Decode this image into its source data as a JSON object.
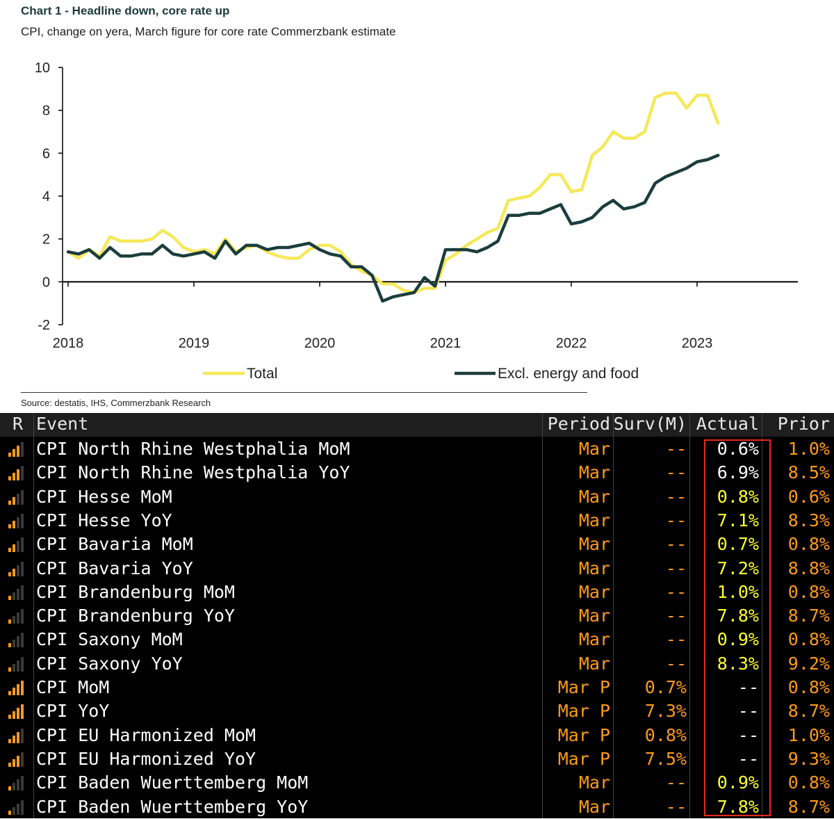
{
  "header": {
    "title": "Chart 1 - Headline down, core rate up",
    "subtitle": "CPI, change on yera, March figure for core rate Commerzbank estimate",
    "source": "Source: destatis, IHS, Commerzbank Research"
  },
  "chart_data": {
    "type": "line",
    "title": "Chart 1 - Headline down, core rate up",
    "subtitle": "CPI, change on yera, March figure for core rate Commerzbank estimate",
    "xlabel": "",
    "ylabel": "",
    "ylim": [
      -2,
      10
    ],
    "yticks": [
      "10",
      "8",
      "6",
      "4",
      "2",
      "0",
      "-2"
    ],
    "xticks": [
      "2018",
      "2019",
      "2020",
      "2021",
      "2022",
      "2023"
    ],
    "legend_position": "bottom",
    "colors": {
      "total": "#f5e85a",
      "core": "#1b3d3d"
    },
    "series": [
      {
        "name": "Total",
        "start": "2018-01",
        "values": [
          1.4,
          1.1,
          1.5,
          1.2,
          2.1,
          1.9,
          1.9,
          1.9,
          2.0,
          2.4,
          2.1,
          1.6,
          1.4,
          1.5,
          1.3,
          2.0,
          1.4,
          1.6,
          1.7,
          1.4,
          1.2,
          1.1,
          1.1,
          1.5,
          1.7,
          1.7,
          1.4,
          0.8,
          0.5,
          0.3,
          -0.1,
          -0.1,
          -0.4,
          -0.5,
          -0.3,
          -0.3,
          1.0,
          1.3,
          1.7,
          2.0,
          2.3,
          2.5,
          3.8,
          3.9,
          4.0,
          4.4,
          5.0,
          5.0,
          4.2,
          4.3,
          5.9,
          6.3,
          7.0,
          6.7,
          6.7,
          7.0,
          8.6,
          8.8,
          8.8,
          8.1,
          8.7,
          8.7,
          7.4
        ]
      },
      {
        "name": "Excl. energy and food",
        "start": "2018-01",
        "values": [
          1.4,
          1.3,
          1.5,
          1.1,
          1.6,
          1.2,
          1.2,
          1.3,
          1.3,
          1.7,
          1.3,
          1.2,
          1.3,
          1.4,
          1.1,
          1.9,
          1.3,
          1.7,
          1.7,
          1.5,
          1.6,
          1.6,
          1.7,
          1.8,
          1.5,
          1.3,
          1.2,
          0.7,
          0.7,
          0.3,
          -0.9,
          -0.7,
          -0.6,
          -0.5,
          0.2,
          -0.2,
          1.5,
          1.5,
          1.5,
          1.4,
          1.6,
          1.9,
          3.1,
          3.1,
          3.2,
          3.2,
          3.4,
          3.6,
          2.7,
          2.8,
          3.0,
          3.5,
          3.8,
          3.4,
          3.5,
          3.7,
          4.6,
          4.9,
          5.1,
          5.3,
          5.6,
          5.7,
          5.9
        ]
      }
    ]
  },
  "table": {
    "columns": {
      "r": "R",
      "event": "Event",
      "period": "Period",
      "surv": "Surv(M)",
      "actual": "Actual",
      "prior": "Prior"
    },
    "colors": {
      "actual_highlight": "#ffff33",
      "actual_normal": "#ffffff",
      "orange": "#ff9a1e",
      "box": "#e8291c"
    },
    "rows": [
      {
        "event": "CPI North Rhine Westphalia MoM",
        "period": "Mar",
        "surv": "--",
        "actual": "0.6%",
        "prior": "1.0%",
        "relevance": 3,
        "highlight": false
      },
      {
        "event": "CPI North Rhine Westphalia YoY",
        "period": "Mar",
        "surv": "--",
        "actual": "6.9%",
        "prior": "8.5%",
        "relevance": 3,
        "highlight": false
      },
      {
        "event": "CPI Hesse MoM",
        "period": "Mar",
        "surv": "--",
        "actual": "0.8%",
        "prior": "0.6%",
        "relevance": 2,
        "highlight": true
      },
      {
        "event": "CPI Hesse YoY",
        "period": "Mar",
        "surv": "--",
        "actual": "7.1%",
        "prior": "8.3%",
        "relevance": 2,
        "highlight": true
      },
      {
        "event": "CPI Bavaria MoM",
        "period": "Mar",
        "surv": "--",
        "actual": "0.7%",
        "prior": "0.8%",
        "relevance": 2,
        "highlight": true
      },
      {
        "event": "CPI Bavaria YoY",
        "period": "Mar",
        "surv": "--",
        "actual": "7.2%",
        "prior": "8.8%",
        "relevance": 2,
        "highlight": true
      },
      {
        "event": "CPI Brandenburg MoM",
        "period": "Mar",
        "surv": "--",
        "actual": "1.0%",
        "prior": "0.8%",
        "relevance": 1,
        "highlight": true
      },
      {
        "event": "CPI Brandenburg YoY",
        "period": "Mar",
        "surv": "--",
        "actual": "7.8%",
        "prior": "8.7%",
        "relevance": 1,
        "highlight": true
      },
      {
        "event": "CPI Saxony MoM",
        "period": "Mar",
        "surv": "--",
        "actual": "0.9%",
        "prior": "0.8%",
        "relevance": 1,
        "highlight": true
      },
      {
        "event": "CPI Saxony YoY",
        "period": "Mar",
        "surv": "--",
        "actual": "8.3%",
        "prior": "9.2%",
        "relevance": 1,
        "highlight": true
      },
      {
        "event": "CPI MoM",
        "period": "Mar P",
        "surv": "0.7%",
        "actual": "--",
        "prior": "0.8%",
        "relevance": 4,
        "highlight": false
      },
      {
        "event": "CPI YoY",
        "period": "Mar P",
        "surv": "7.3%",
        "actual": "--",
        "prior": "8.7%",
        "relevance": 4,
        "highlight": false
      },
      {
        "event": "CPI EU Harmonized MoM",
        "period": "Mar P",
        "surv": "0.8%",
        "actual": "--",
        "prior": "1.0%",
        "relevance": 3,
        "highlight": false
      },
      {
        "event": "CPI EU Harmonized YoY",
        "period": "Mar P",
        "surv": "7.5%",
        "actual": "--",
        "prior": "9.3%",
        "relevance": 3,
        "highlight": false
      },
      {
        "event": "CPI Baden Wuerttemberg MoM",
        "period": "Mar",
        "surv": "--",
        "actual": "0.9%",
        "prior": "0.8%",
        "relevance": 1,
        "highlight": true
      },
      {
        "event": "CPI Baden Wuerttemberg YoY",
        "period": "Mar",
        "surv": "--",
        "actual": "7.8%",
        "prior": "8.7%",
        "relevance": 1,
        "highlight": true
      }
    ]
  }
}
